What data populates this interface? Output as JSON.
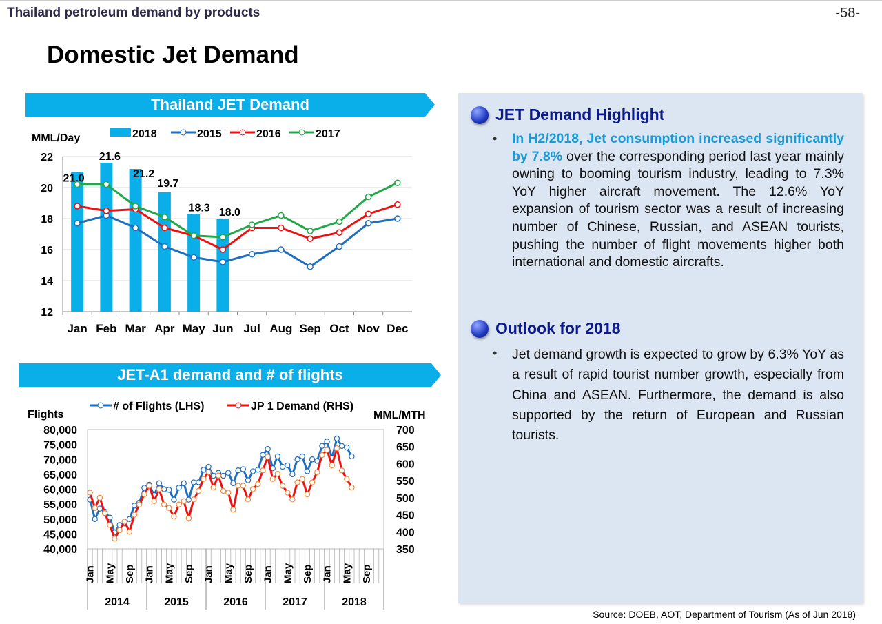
{
  "header": {
    "section": "Thailand petroleum demand by products",
    "page": "-58-",
    "title": "Domestic Jet Demand"
  },
  "banners": {
    "chart1": "Thailand JET Demand",
    "chart2": "JET-A1 demand and # of flights"
  },
  "panel": {
    "highlight_title": "JET Demand Highlight",
    "highlight_bold": "In H2/2018, Jet consumption increased significantly by 7.8%",
    "highlight_text": " over the corresponding period last year mainly owning to booming tourism industry, leading to 7.3% YoY higher aircraft movement. The 12.6% YoY expansion of tourism sector was a result of increasing number of Chinese, Russian, and ASEAN tourists, pushing the number of flight movements higher both international and domestic aircrafts.",
    "outlook_title": "Outlook for 2018",
    "outlook_text": "Jet demand growth is expected to grow by 6.3% YoY as a result of rapid tourist number growth, especially from China and ASEAN. Furthermore, the demand is also supported by the return of European and Russian tourists.",
    "bullet": "•"
  },
  "source": "Source: DOEB, AOT, Department of Tourism (As of Jun 2018)",
  "chart_data": [
    {
      "type": "bar+line",
      "ylabel": "MML/Day",
      "ylim": [
        12,
        22
      ],
      "yticks": [
        12,
        14,
        16,
        18,
        20,
        22
      ],
      "grid": true,
      "legend": "top",
      "categories": [
        "Jan",
        "Feb",
        "Mar",
        "Apr",
        "May",
        "Jun",
        "Jul",
        "Aug",
        "Sep",
        "Oct",
        "Nov",
        "Dec"
      ],
      "bars": {
        "name": "2018",
        "color": "#0aaee8",
        "values": [
          21.0,
          21.6,
          21.2,
          19.7,
          18.3,
          18.0
        ],
        "labels": [
          "21.0",
          "21.6",
          "21.2",
          "19.7",
          "18.3",
          "18.0"
        ]
      },
      "series": [
        {
          "name": "2015",
          "color": "#1f6fbf",
          "values": [
            17.7,
            18.2,
            17.4,
            16.2,
            15.5,
            15.2,
            15.7,
            16.0,
            14.9,
            16.2,
            17.7,
            18.0
          ]
        },
        {
          "name": "2016",
          "color": "#ee1111",
          "values": [
            18.8,
            18.5,
            18.6,
            17.4,
            16.9,
            16.0,
            17.4,
            17.4,
            16.7,
            17.1,
            18.3,
            18.9
          ]
        },
        {
          "name": "2017",
          "color": "#22a84a",
          "values": [
            20.2,
            20.2,
            18.8,
            18.1,
            16.9,
            16.8,
            17.6,
            18.2,
            17.2,
            17.8,
            19.4,
            20.3
          ]
        }
      ]
    },
    {
      "type": "line",
      "ylabel_left": "Flights",
      "ylabel_right": "MML/MTH",
      "legend": "top",
      "ylim_left": [
        40000,
        80000
      ],
      "yticks_left": [
        "40,000",
        "45,000",
        "50,000",
        "55,000",
        "60,000",
        "65,000",
        "70,000",
        "75,000",
        "80,000"
      ],
      "ylim_right": [
        350,
        700
      ],
      "yticks_right": [
        "350",
        "400",
        "450",
        "500",
        "550",
        "600",
        "650",
        "700"
      ],
      "years": [
        "2014",
        "2015",
        "2016",
        "2017",
        "2018"
      ],
      "month_ticks": [
        "Jan",
        "May",
        "Sep"
      ],
      "series": [
        {
          "name": "# of Flights (LHS)",
          "axis": "left",
          "color": "#1f6fbf",
          "values": [
            56500,
            50000,
            53500,
            52500,
            50500,
            45500,
            48000,
            48500,
            50000,
            54500,
            55500,
            60500,
            61500,
            58000,
            62000,
            60000,
            59800,
            56500,
            60500,
            62000,
            56500,
            62300,
            62300,
            66500,
            67500,
            64500,
            65500,
            64500,
            65500,
            62000,
            66300,
            66700,
            63000,
            66000,
            66500,
            71500,
            73500,
            67000,
            71000,
            67500,
            68000,
            65000,
            70000,
            71000,
            66000,
            70000,
            69500,
            74500,
            76000,
            70500,
            77000,
            74500,
            74000,
            71000
          ]
        },
        {
          "name": "JP 1 Demand (RHS)",
          "axis": "right",
          "color": "#ee1111",
          "values": [
            515,
            470,
            500,
            455,
            420,
            380,
            405,
            430,
            400,
            450,
            480,
            510,
            535,
            490,
            525,
            480,
            470,
            445,
            480,
            490,
            440,
            495,
            520,
            555,
            575,
            530,
            565,
            520,
            515,
            465,
            535,
            535,
            495,
            525,
            540,
            580,
            620,
            555,
            570,
            535,
            515,
            495,
            545,
            555,
            510,
            545,
            575,
            625,
            640,
            595,
            645,
            580,
            555,
            530
          ]
        }
      ]
    }
  ]
}
